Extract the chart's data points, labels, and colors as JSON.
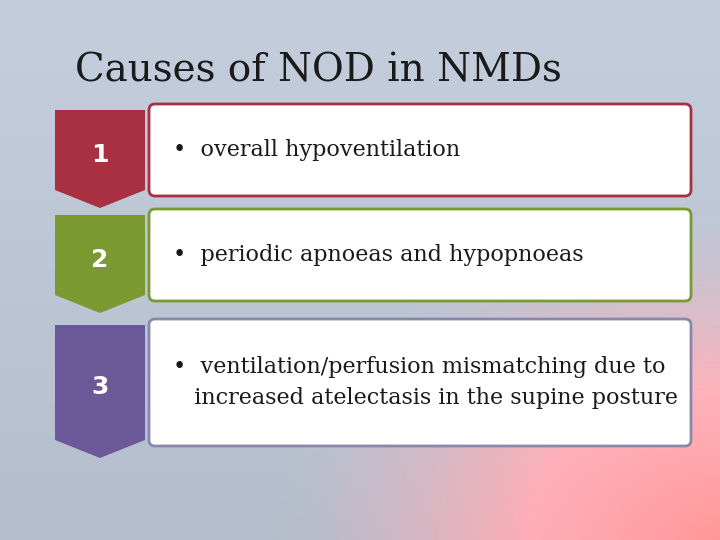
{
  "title": "Causes of NOD in NMDs",
  "title_fontsize": 28,
  "title_color": "#1a1a1a",
  "bg_color": "#c5cedd",
  "items": [
    {
      "number": "1",
      "arrow_color": "#a83040",
      "border_color": "#a83040",
      "text": "•  overall hypoventilation",
      "text_fontsize": 16
    },
    {
      "number": "2",
      "arrow_color": "#7a9930",
      "border_color": "#7a9930",
      "text": "•  periodic apnoeas and hypopnoeas",
      "text_fontsize": 16
    },
    {
      "number": "3",
      "arrow_color": "#6a5898",
      "border_color": "#8888aa",
      "text": "•  ventilation/perfusion mismatching due to\n   increased atelectasis in the supine posture",
      "text_fontsize": 16
    }
  ]
}
